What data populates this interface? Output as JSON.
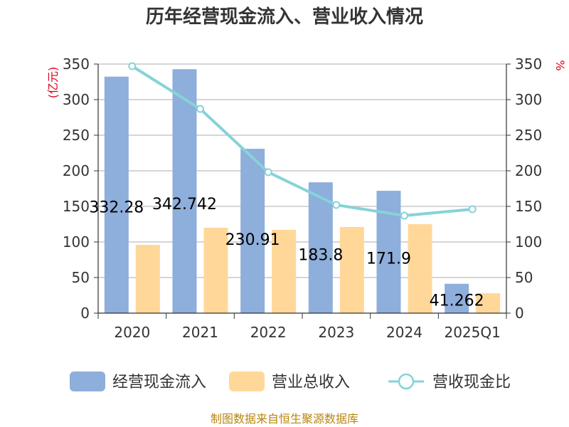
{
  "chart_data": {
    "type": "bar",
    "title": "历年经营现金流入、营业收入情况",
    "categories": [
      "2020",
      "2021",
      "2022",
      "2023",
      "2024",
      "2025Q1"
    ],
    "y_left_unit": "(亿元)",
    "y_right_unit": "%",
    "ylim": [
      0,
      350
    ],
    "y_ticks": [
      0,
      50,
      100,
      150,
      200,
      250,
      300,
      350
    ],
    "grid": true,
    "legend_position": "bottom",
    "series": [
      {
        "name": "经营现金流入",
        "type": "bar",
        "axis": "left",
        "color": "#8eaedb",
        "values": [
          332.28,
          342.742,
          230.91,
          183.8,
          171.9,
          41.262
        ],
        "data_labels": [
          "332.28",
          "342.742",
          "230.91",
          "183.8",
          "171.9",
          "41.262"
        ]
      },
      {
        "name": "营业总收入",
        "type": "bar",
        "axis": "left",
        "color": "#ffd899",
        "values": [
          96,
          120,
          117,
          121,
          125,
          28
        ]
      },
      {
        "name": "营收现金比",
        "type": "line",
        "axis": "right",
        "color": "#86d3d7",
        "values": [
          347,
          287,
          198,
          152,
          137,
          146
        ]
      }
    ]
  },
  "footer": "制图数据来自恒生聚源数据库"
}
